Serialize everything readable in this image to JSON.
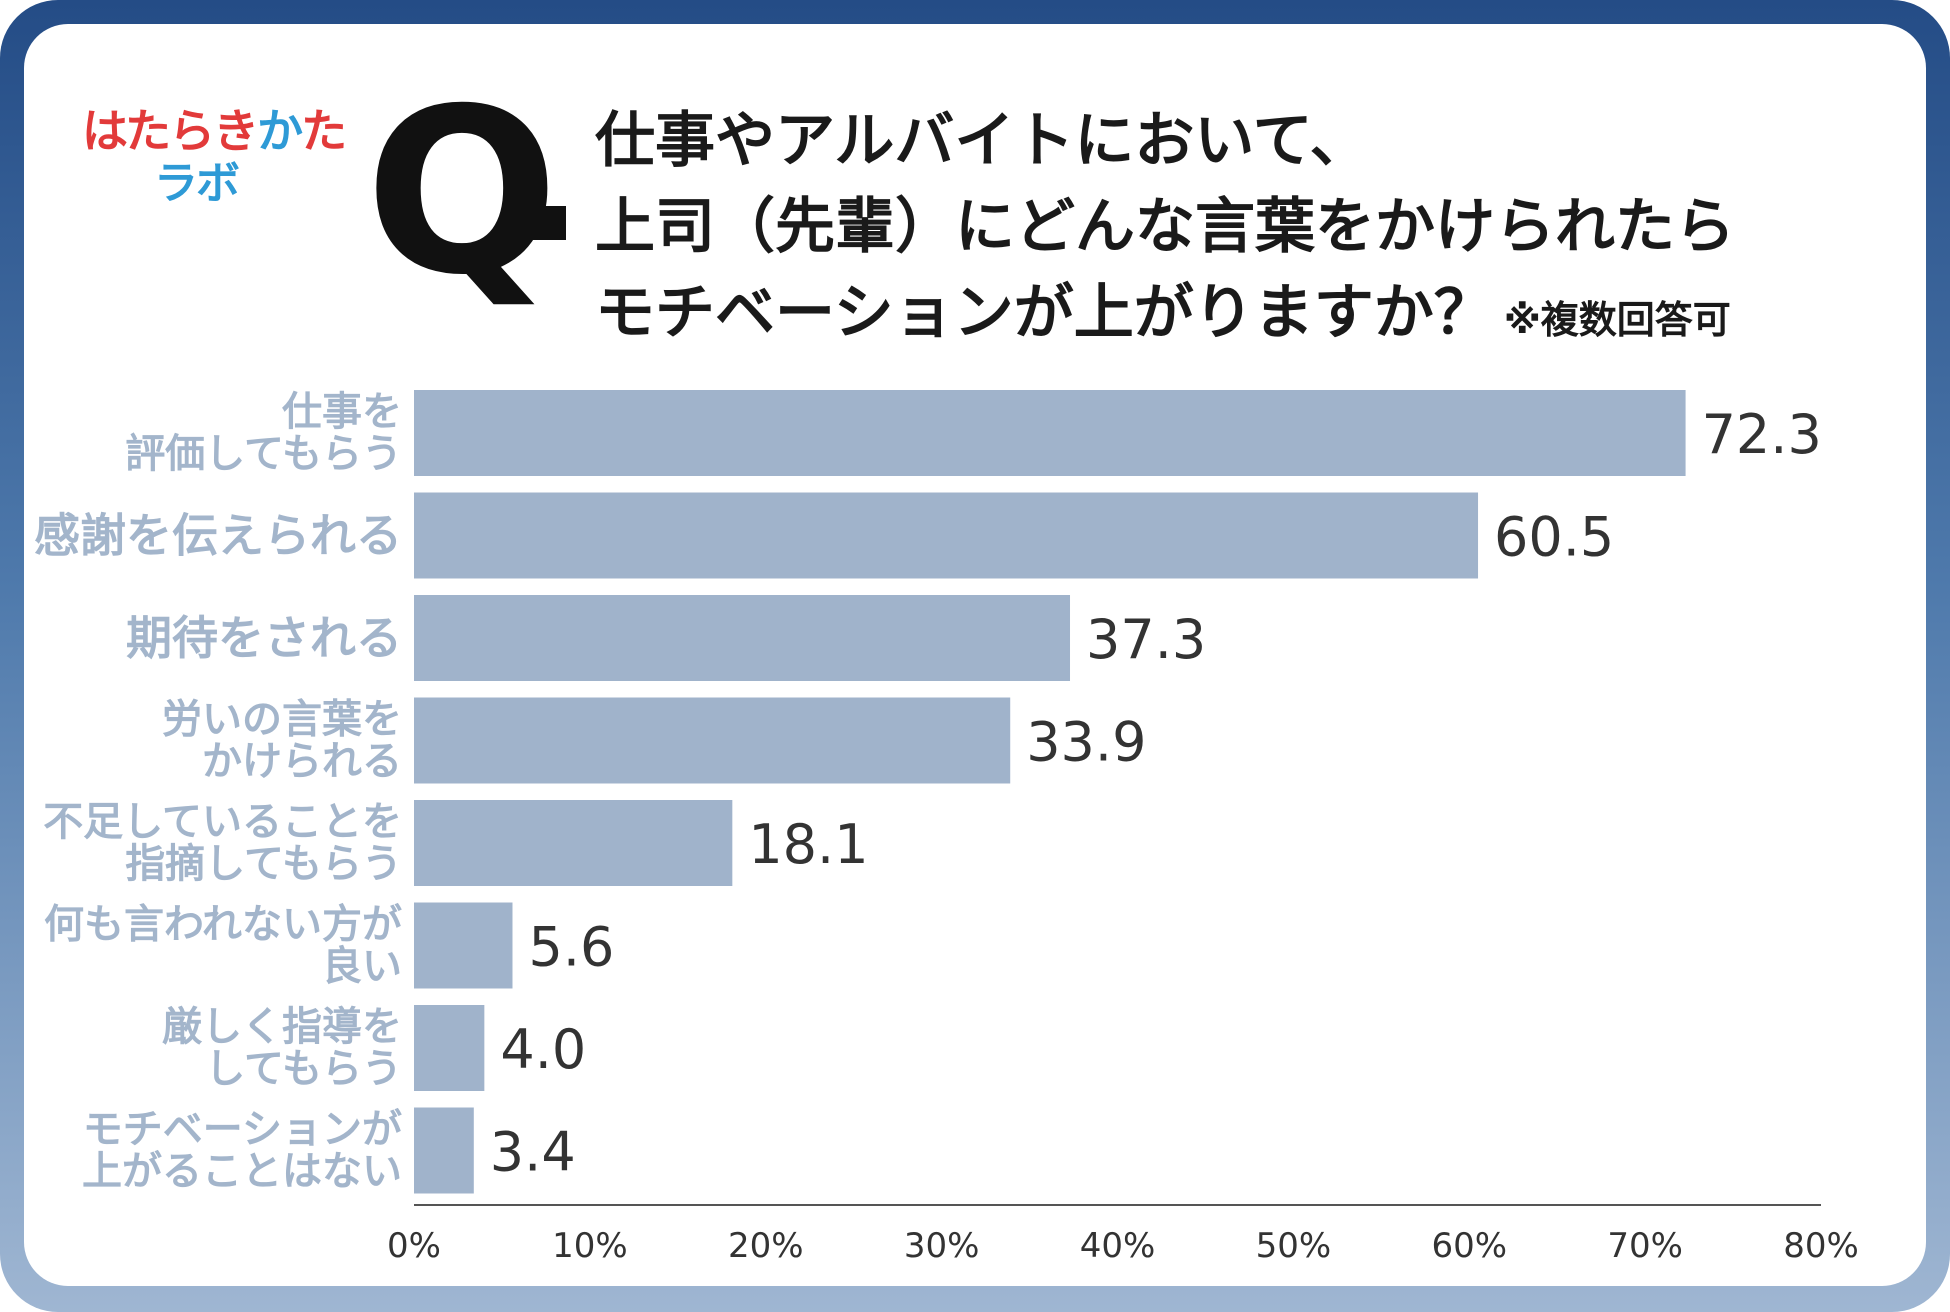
{
  "logo": {
    "line1": "はたらきかた",
    "line2": "ラボ",
    "line1_colors": [
      "#e23a3a",
      "#e23a3a",
      "#e23a3a",
      "#e23a3a",
      "#2e9ad6",
      "#e23a3a"
    ]
  },
  "question": {
    "mark": "Q",
    "line1": "仕事やアルバイトにおいて、",
    "line2": "上司（先輩）にどんな言葉をかけられたら",
    "line3": "モチベーションが上がりますか？",
    "note": "※複数回答可"
  },
  "chart_data": {
    "type": "bar",
    "orientation": "horizontal",
    "categories": [
      [
        "仕事を",
        "評価してもらう"
      ],
      [
        "感謝を伝えられる"
      ],
      [
        "期待をされる"
      ],
      [
        "労いの言葉を",
        "かけられる"
      ],
      [
        "不足していることを",
        "指摘してもらう"
      ],
      [
        "何も言われない方が",
        "良い"
      ],
      [
        "厳しく指導を",
        "してもらう"
      ],
      [
        "モチベーションが",
        "上がることはない"
      ]
    ],
    "values": [
      72.3,
      60.5,
      37.3,
      33.9,
      18.1,
      5.6,
      4.0,
      3.4
    ],
    "value_labels": [
      "72.3",
      "60.5",
      "37.3",
      "33.9",
      "18.1",
      "5.6",
      "4.0",
      "3.4"
    ],
    "xlim": [
      0,
      80
    ],
    "xticks": [
      0,
      10,
      20,
      30,
      40,
      50,
      60,
      70,
      80
    ],
    "xtick_labels": [
      "0%",
      "10%",
      "20%",
      "30%",
      "40%",
      "50%",
      "60%",
      "70%",
      "80%"
    ],
    "grid": false,
    "colors": {
      "bar": "#a0b3cb",
      "category_label": "#a3b5cb",
      "value_label": "#333333",
      "axis": "#555555"
    }
  }
}
